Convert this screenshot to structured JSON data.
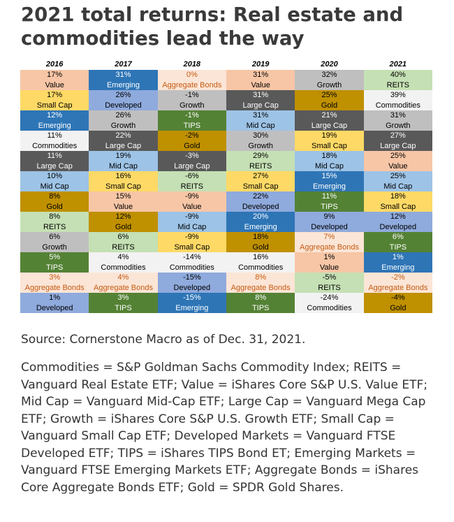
{
  "title": "2021 total returns: Real estate and commodities lead the way",
  "source": "Source: Cornerstone Macro as of Dec. 31, 2021.",
  "legend_text": "Commodities = S&P Goldman Sachs Commodity Index; REITS = Vanguard Real Estate ETF; Value = iShares Core S&P U.S. Value ETF; Mid Cap = Vanguard Mid-Cap ETF; Large Cap = Vanguard Mega Cap ETF; Growth = iShares Core S&P U.S. Growth ETF; Small Cap = Vanguard Small Cap ETF; Developed Markets = Vanguard FTSE Developed ETF; TIPS = iShares TIPS Bond ET; Emerging Markets = Vanguard FTSE Emerging Markets ETF; Aggregate Bonds = iShares Core Aggregate Bonds ETF; Gold = SPDR Gold Shares.",
  "asset_styles": {
    "Value": {
      "bg": "#f7c6a6",
      "fg": "#000000"
    },
    "Small Cap": {
      "bg": "#fed966",
      "fg": "#000000"
    },
    "Emerging": {
      "bg": "#2e75b6",
      "fg": "#ffffff"
    },
    "Commodities": {
      "bg": "#f2f2f2",
      "fg": "#000000"
    },
    "Large Cap": {
      "bg": "#595959",
      "fg": "#ffffff"
    },
    "Mid Cap": {
      "bg": "#9dc3e6",
      "fg": "#000000"
    },
    "Gold": {
      "bg": "#bf9000",
      "fg": "#000000"
    },
    "REITS": {
      "bg": "#c5e0b4",
      "fg": "#000000"
    },
    "Growth": {
      "bg": "#bfbfbf",
      "fg": "#000000"
    },
    "TIPS": {
      "bg": "#548235",
      "fg": "#ffffff"
    },
    "Aggregate Bonds": {
      "bg": "#fbe5d6",
      "fg": "#c55a11"
    },
    "Developed": {
      "bg": "#8faadc",
      "fg": "#000000"
    }
  },
  "chart_data": {
    "type": "table",
    "title": "2021 total returns: Real estate and commodities lead the way",
    "columns": [
      "2016",
      "2017",
      "2018",
      "2019",
      "2020",
      "2021"
    ],
    "cells": [
      [
        {
          "value": "17%",
          "asset": "Value"
        },
        {
          "value": "17%",
          "asset": "Small Cap"
        },
        {
          "value": "12%",
          "asset": "Emerging"
        },
        {
          "value": "11%",
          "asset": "Commodities"
        },
        {
          "value": "11%",
          "asset": "Large Cap"
        },
        {
          "value": "10%",
          "asset": "Mid Cap"
        },
        {
          "value": "8%",
          "asset": "Gold"
        },
        {
          "value": "8%",
          "asset": "REITS"
        },
        {
          "value": "6%",
          "asset": "Growth"
        },
        {
          "value": "5%",
          "asset": "TIPS"
        },
        {
          "value": "3%",
          "asset": "Aggregate Bonds"
        },
        {
          "value": "1%",
          "asset": "Developed"
        }
      ],
      [
        {
          "value": "31%",
          "asset": "Emerging"
        },
        {
          "value": "26%",
          "asset": "Developed"
        },
        {
          "value": "26%",
          "asset": "Growth"
        },
        {
          "value": "22%",
          "asset": "Large Cap"
        },
        {
          "value": "19%",
          "asset": "Mid Cap"
        },
        {
          "value": "16%",
          "asset": "Small Cap"
        },
        {
          "value": "15%",
          "asset": "Value"
        },
        {
          "value": "12%",
          "asset": "Gold"
        },
        {
          "value": "6%",
          "asset": "REITS"
        },
        {
          "value": "4%",
          "asset": "Commodities"
        },
        {
          "value": "4%",
          "asset": "Aggregate Bonds"
        },
        {
          "value": "3%",
          "asset": "TIPS"
        }
      ],
      [
        {
          "value": "0%",
          "asset": "Aggregate Bonds"
        },
        {
          "value": "-1%",
          "asset": "Growth"
        },
        {
          "value": "-1%",
          "asset": "TIPS"
        },
        {
          "value": "-2%",
          "asset": "Gold"
        },
        {
          "value": "-3%",
          "asset": "Large Cap"
        },
        {
          "value": "-6%",
          "asset": "REITS"
        },
        {
          "value": "-9%",
          "asset": "Value"
        },
        {
          "value": "-9%",
          "asset": "Mid Cap"
        },
        {
          "value": "-9%",
          "asset": "Small Cap"
        },
        {
          "value": "-14%",
          "asset": "Commodities"
        },
        {
          "value": "-15%",
          "asset": "Developed"
        },
        {
          "value": "-15%",
          "asset": "Emerging"
        }
      ],
      [
        {
          "value": "31%",
          "asset": "Value"
        },
        {
          "value": "31%",
          "asset": "Large Cap"
        },
        {
          "value": "31%",
          "asset": "Mid Cap"
        },
        {
          "value": "30%",
          "asset": "Growth"
        },
        {
          "value": "29%",
          "asset": "REITS"
        },
        {
          "value": "27%",
          "asset": "Small Cap"
        },
        {
          "value": "22%",
          "asset": "Developed"
        },
        {
          "value": "20%",
          "asset": "Emerging"
        },
        {
          "value": "18%",
          "asset": "Gold"
        },
        {
          "value": "16%",
          "asset": "Commodities"
        },
        {
          "value": "8%",
          "asset": "Aggregate Bonds"
        },
        {
          "value": "8%",
          "asset": "TIPS"
        }
      ],
      [
        {
          "value": "32%",
          "asset": "Growth"
        },
        {
          "value": "25%",
          "asset": "Gold"
        },
        {
          "value": "21%",
          "asset": "Large Cap"
        },
        {
          "value": "19%",
          "asset": "Small Cap"
        },
        {
          "value": "18%",
          "asset": "Mid Cap"
        },
        {
          "value": "15%",
          "asset": "Emerging"
        },
        {
          "value": "11%",
          "asset": "TIPS"
        },
        {
          "value": "9%",
          "asset": "Developed"
        },
        {
          "value": "7%",
          "asset": "Aggregate Bonds"
        },
        {
          "value": "1%",
          "asset": "Value"
        },
        {
          "value": "-5%",
          "asset": "REITS"
        },
        {
          "value": "-24%",
          "asset": "Commodities"
        }
      ],
      [
        {
          "value": "40%",
          "asset": "REITS"
        },
        {
          "value": "39%",
          "asset": "Commodities"
        },
        {
          "value": "31%",
          "asset": "Growth"
        },
        {
          "value": "27%",
          "asset": "Large Cap"
        },
        {
          "value": "25%",
          "asset": "Value"
        },
        {
          "value": "25%",
          "asset": "Mid Cap"
        },
        {
          "value": "18%",
          "asset": "Small Cap"
        },
        {
          "value": "12%",
          "asset": "Developed"
        },
        {
          "value": "6%",
          "asset": "TIPS"
        },
        {
          "value": "1%",
          "asset": "Emerging"
        },
        {
          "value": "-2%",
          "asset": "Aggregate Bonds"
        },
        {
          "value": "-4%",
          "asset": "Gold"
        }
      ]
    ]
  }
}
